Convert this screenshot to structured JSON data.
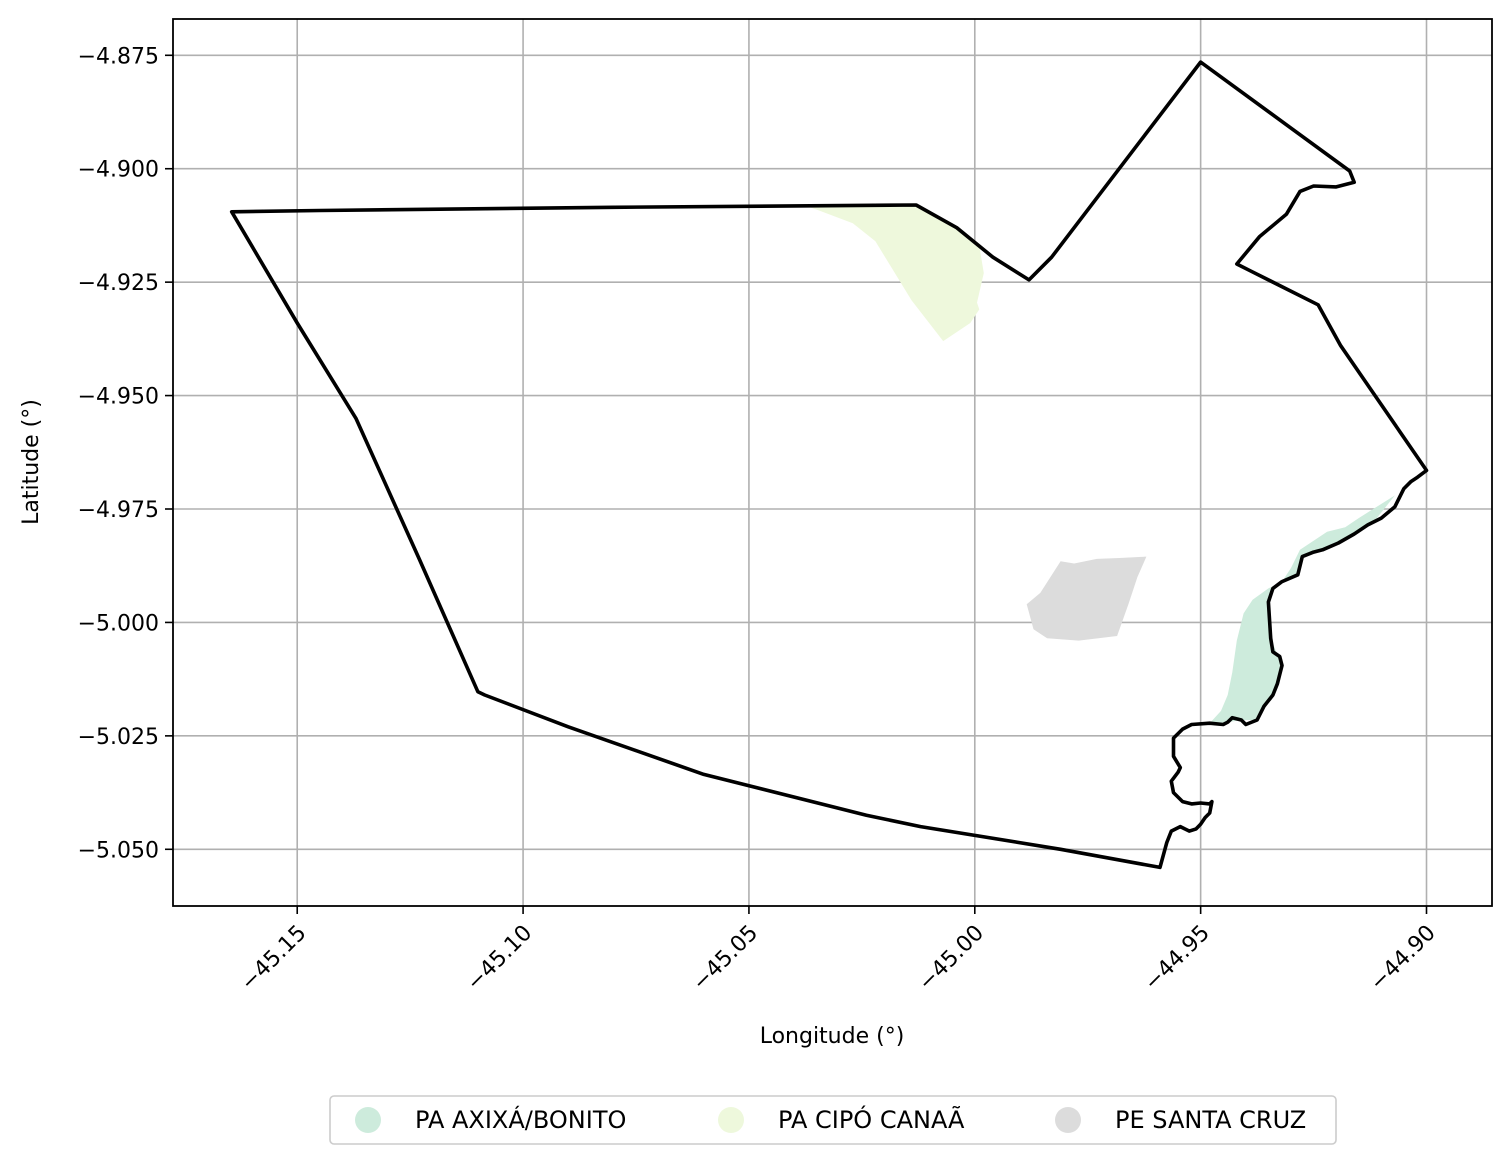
{
  "chart_data": {
    "type": "map",
    "title": "",
    "xlabel": "Longitude (°)",
    "ylabel": "Latitude (°)",
    "xlim": [
      -45.1775,
      -44.8855
    ],
    "ylim": [
      -5.0625,
      -4.867
    ],
    "grid": true,
    "x_ticks": [
      -45.15,
      -45.1,
      -45.05,
      -45.0,
      -44.95,
      -44.9
    ],
    "x_tick_labels": [
      "−45.15",
      "−45.10",
      "−45.05",
      "−45.00",
      "−44.95",
      "−44.90"
    ],
    "y_ticks": [
      -4.875,
      -4.9,
      -4.925,
      -4.95,
      -4.975,
      -5.0,
      -5.025,
      -5.05
    ],
    "y_tick_labels": [
      "−4.875",
      "−4.900",
      "−4.925",
      "−4.950",
      "−4.975",
      "−5.000",
      "−5.025",
      "−5.050"
    ],
    "legend_position": "bottom-center",
    "boundary": {
      "stroke_color": "#000000",
      "coords": [
        [
          -45.1645,
          -4.9095
        ],
        [
          -45.145,
          -4.9092
        ],
        [
          -45.08,
          -4.9085
        ],
        [
          -45.013,
          -4.908
        ],
        [
          -45.004,
          -4.913
        ],
        [
          -44.996,
          -4.9195
        ],
        [
          -44.988,
          -4.9245
        ],
        [
          -44.983,
          -4.9195
        ],
        [
          -44.95,
          -4.8765
        ],
        [
          -44.917,
          -4.9005
        ],
        [
          -44.916,
          -4.903
        ],
        [
          -44.92,
          -4.904
        ],
        [
          -44.925,
          -4.9038
        ],
        [
          -44.928,
          -4.905
        ],
        [
          -44.931,
          -4.91
        ],
        [
          -44.937,
          -4.915
        ],
        [
          -44.942,
          -4.921
        ],
        [
          -44.939,
          -4.9225
        ],
        [
          -44.924,
          -4.93
        ],
        [
          -44.919,
          -4.939
        ],
        [
          -44.9,
          -4.9665
        ],
        [
          -44.902,
          -4.968
        ],
        [
          -44.9035,
          -4.969
        ],
        [
          -44.905,
          -4.9705
        ],
        [
          -44.907,
          -4.9745
        ],
        [
          -44.91,
          -4.977
        ],
        [
          -44.913,
          -4.9785
        ],
        [
          -44.916,
          -4.9805
        ],
        [
          -44.9195,
          -4.9825
        ],
        [
          -44.923,
          -4.984
        ],
        [
          -44.925,
          -4.9845
        ],
        [
          -44.9275,
          -4.9855
        ],
        [
          -44.9285,
          -4.9895
        ],
        [
          -44.932,
          -4.991
        ],
        [
          -44.934,
          -4.9925
        ],
        [
          -44.935,
          -4.9955
        ],
        [
          -44.9345,
          -5.0035
        ],
        [
          -44.934,
          -5.0065
        ],
        [
          -44.9325,
          -5.0075
        ],
        [
          -44.932,
          -5.0095
        ],
        [
          -44.933,
          -5.0135
        ],
        [
          -44.934,
          -5.016
        ],
        [
          -44.936,
          -5.0185
        ],
        [
          -44.9375,
          -5.0215
        ],
        [
          -44.94,
          -5.0225
        ],
        [
          -44.941,
          -5.0215
        ],
        [
          -44.943,
          -5.021
        ],
        [
          -44.944,
          -5.022
        ],
        [
          -44.945,
          -5.0225
        ],
        [
          -44.948,
          -5.0222
        ],
        [
          -44.952,
          -5.0225
        ],
        [
          -44.954,
          -5.0235
        ],
        [
          -44.956,
          -5.0255
        ],
        [
          -44.956,
          -5.0295
        ],
        [
          -44.9545,
          -5.032
        ],
        [
          -44.955,
          -5.033
        ],
        [
          -44.9565,
          -5.035
        ],
        [
          -44.956,
          -5.0375
        ],
        [
          -44.954,
          -5.0395
        ],
        [
          -44.952,
          -5.04
        ],
        [
          -44.95,
          -5.0398
        ],
        [
          -44.948,
          -5.04
        ],
        [
          -44.9475,
          -5.0395
        ],
        [
          -44.948,
          -5.042
        ],
        [
          -44.949,
          -5.043
        ],
        [
          -44.95,
          -5.0445
        ],
        [
          -44.951,
          -5.0455
        ],
        [
          -44.9525,
          -5.046
        ],
        [
          -44.9535,
          -5.0455
        ],
        [
          -44.9545,
          -5.045
        ],
        [
          -44.9565,
          -5.046
        ],
        [
          -44.9575,
          -5.0485
        ],
        [
          -44.959,
          -5.054
        ],
        [
          -44.981,
          -5.05
        ],
        [
          -45.012,
          -5.045
        ],
        [
          -45.024,
          -5.0425
        ],
        [
          -45.06,
          -5.0335
        ],
        [
          -45.09,
          -5.023
        ],
        [
          -45.1085,
          -5.016
        ],
        [
          -45.11,
          -5.0153
        ],
        [
          -45.123,
          -4.986
        ],
        [
          -45.137,
          -4.955
        ],
        [
          -45.15,
          -4.934
        ],
        [
          -45.1645,
          -4.9095
        ]
      ]
    },
    "areas": [
      {
        "name": "PA AXIXÁ/BONITO",
        "color": "#cdebdc",
        "coords": [
          [
            -44.948,
            -5.0222
          ],
          [
            -44.9455,
            -5.0195
          ],
          [
            -44.944,
            -5.016
          ],
          [
            -44.943,
            -5.011
          ],
          [
            -44.942,
            -5.004
          ],
          [
            -44.9405,
            -4.998
          ],
          [
            -44.9385,
            -4.995
          ],
          [
            -44.935,
            -4.9925
          ],
          [
            -44.932,
            -4.991
          ],
          [
            -44.93,
            -4.988
          ],
          [
            -44.928,
            -4.984
          ],
          [
            -44.925,
            -4.982
          ],
          [
            -44.922,
            -4.98
          ],
          [
            -44.918,
            -4.979
          ],
          [
            -44.915,
            -4.977
          ],
          [
            -44.911,
            -4.9745
          ],
          [
            -44.907,
            -4.972
          ],
          [
            -44.911,
            -4.977
          ],
          [
            -44.916,
            -4.9805
          ],
          [
            -44.923,
            -4.984
          ],
          [
            -44.9275,
            -4.9855
          ],
          [
            -44.9285,
            -4.9895
          ],
          [
            -44.934,
            -4.9925
          ],
          [
            -44.935,
            -4.9955
          ],
          [
            -44.9345,
            -5.0035
          ],
          [
            -44.932,
            -5.0095
          ],
          [
            -44.934,
            -5.016
          ],
          [
            -44.9375,
            -5.0215
          ],
          [
            -44.941,
            -5.0215
          ],
          [
            -44.944,
            -5.022
          ],
          [
            -44.948,
            -5.0222
          ]
        ]
      },
      {
        "name": "PA CIPÓ CANAÃ",
        "color": "#eef8dc",
        "coords": [
          [
            -45.038,
            -4.908
          ],
          [
            -45.018,
            -4.908
          ],
          [
            -45.013,
            -4.908
          ],
          [
            -45.005,
            -4.9125
          ],
          [
            -44.999,
            -4.917
          ],
          [
            -44.998,
            -4.923
          ],
          [
            -44.9995,
            -4.9295
          ],
          [
            -44.999,
            -4.931
          ],
          [
            -45.001,
            -4.934
          ],
          [
            -45.007,
            -4.938
          ],
          [
            -45.014,
            -4.929
          ],
          [
            -45.022,
            -4.916
          ],
          [
            -45.027,
            -4.912
          ],
          [
            -45.035,
            -4.909
          ],
          [
            -45.038,
            -4.908
          ]
        ]
      },
      {
        "name": "PE SANTA CRUZ",
        "color": "#dcdcdc",
        "coords": [
          [
            -44.962,
            -4.9855
          ],
          [
            -44.964,
            -4.99
          ],
          [
            -44.966,
            -4.996
          ],
          [
            -44.9685,
            -5.003
          ],
          [
            -44.977,
            -5.004
          ],
          [
            -44.984,
            -5.0035
          ],
          [
            -44.987,
            -5.0015
          ],
          [
            -44.9885,
            -4.996
          ],
          [
            -44.9855,
            -4.9935
          ],
          [
            -44.981,
            -4.9865
          ],
          [
            -44.978,
            -4.987
          ],
          [
            -44.973,
            -4.986
          ],
          [
            -44.968,
            -4.9858
          ],
          [
            -44.962,
            -4.9855
          ]
        ]
      }
    ],
    "legend": [
      {
        "label": "PA AXIXÁ/BONITO",
        "color": "#cdebdc"
      },
      {
        "label": "PA CIPÓ CANAÃ",
        "color": "#eef8dc"
      },
      {
        "label": "PE SANTA CRUZ",
        "color": "#dcdcdc"
      }
    ]
  }
}
